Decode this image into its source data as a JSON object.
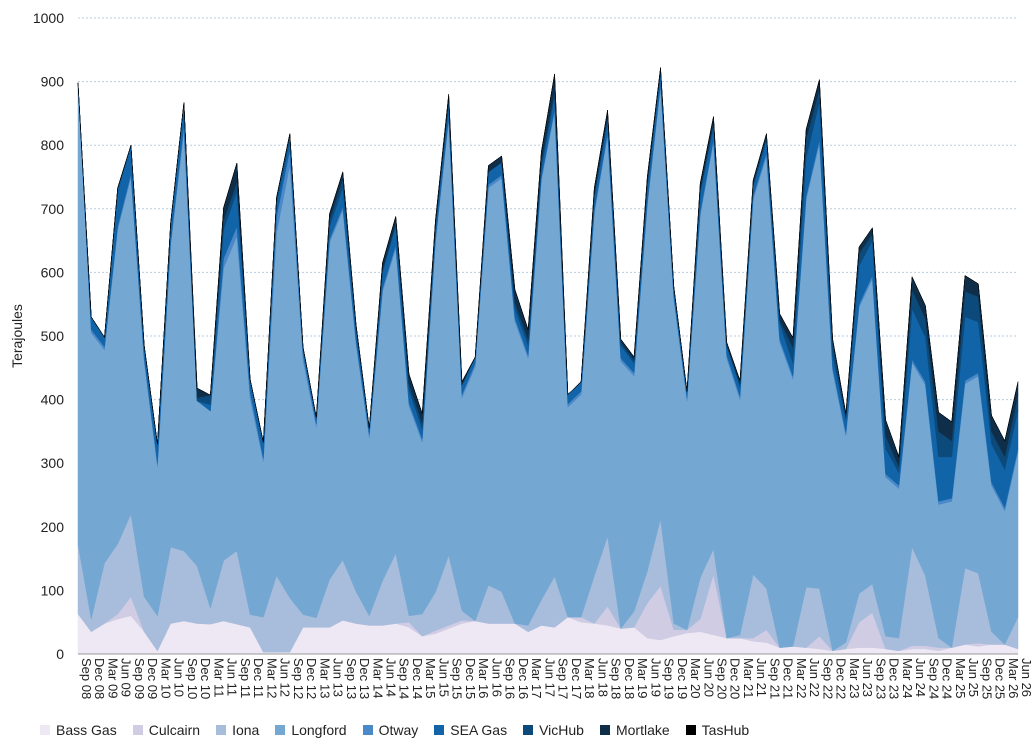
{
  "chart_data": {
    "type": "area",
    "stacked": true,
    "title": "",
    "xlabel": "",
    "ylabel": "Terajoules",
    "ylim": [
      0,
      1000
    ],
    "yticks": [
      0,
      100,
      200,
      300,
      400,
      500,
      600,
      700,
      800,
      900,
      1000
    ],
    "grid": "horizontal dashed",
    "legend_position": "bottom",
    "x_tick_labels": [
      "Sep 08",
      "Dec 08",
      "Mar 09",
      "Jun 09",
      "Sep 09",
      "Dec 09",
      "Mar 10",
      "Jun 10",
      "Sep 10",
      "Dec 10",
      "Mar 11",
      "Jun 11",
      "Sep 11",
      "Dec 11",
      "Mar 12",
      "Jun 12",
      "Sep 12",
      "Dec 12",
      "Mar 13",
      "Jun 13",
      "Sep 13",
      "Dec 13",
      "Mar 14",
      "Jun 14",
      "Sep 14",
      "Dec 14",
      "Mar 15",
      "Jun 15",
      "Sep 15",
      "Dec 15",
      "Mar 16",
      "Jun 16",
      "Sep 16",
      "Dec 16",
      "Mar 17",
      "Jun 17",
      "Sep 17",
      "Dec 17",
      "Mar 18",
      "Jun 18",
      "Sep 18",
      "Dec 18",
      "Mar 19",
      "Jun 19",
      "Sep 19",
      "Dec 19",
      "Mar 20",
      "Jun 20",
      "Sep 20",
      "Dec 20",
      "Mar 21",
      "Jun 21",
      "Sep 21",
      "Dec 21",
      "Mar 22",
      "Jun 22",
      "Sep 22",
      "Dec 22",
      "Mar 23",
      "Jun 23",
      "Sep 23",
      "Dec 23",
      "Mar 24",
      "Jun 24",
      "Sep 24",
      "Dec 24",
      "Mar 25",
      "Jun 25",
      "Sep 25",
      "Dec 25",
      "Mar 26",
      "Jun 26"
    ],
    "series": [
      {
        "name": "Bass Gas",
        "color": "#ede8f4",
        "values": [
          63,
          35,
          48,
          55,
          60,
          35,
          5,
          48,
          52,
          48,
          47,
          52,
          47,
          42,
          3,
          3,
          3,
          42,
          42,
          42,
          53,
          48,
          45,
          45,
          48,
          42,
          28,
          32,
          40,
          48,
          52,
          48,
          48,
          48,
          35,
          45,
          42,
          58,
          50,
          48,
          45,
          40,
          42,
          25,
          22,
          28,
          33,
          35,
          30,
          25,
          25,
          20,
          18,
          10,
          12,
          10,
          8,
          5,
          8,
          10,
          10,
          8,
          5,
          8,
          8,
          5,
          10,
          15,
          12,
          15,
          15,
          8
        ]
      },
      {
        "name": "Culcairn",
        "color": "#cfcce4",
        "values": [
          0,
          0,
          0,
          8,
          30,
          0,
          0,
          0,
          0,
          0,
          0,
          0,
          0,
          0,
          0,
          0,
          0,
          0,
          0,
          0,
          0,
          0,
          0,
          0,
          0,
          8,
          0,
          5,
          5,
          5,
          0,
          0,
          0,
          0,
          0,
          0,
          0,
          0,
          8,
          0,
          30,
          0,
          0,
          55,
          85,
          10,
          5,
          20,
          95,
          0,
          0,
          5,
          20,
          0,
          0,
          0,
          20,
          0,
          0,
          40,
          55,
          0,
          0,
          5,
          5,
          5,
          0,
          0,
          5,
          0,
          0,
          0
        ]
      },
      {
        "name": "Iona",
        "color": "#a8bcdc",
        "values": [
          110,
          20,
          95,
          110,
          130,
          55,
          55,
          120,
          110,
          90,
          25,
          95,
          115,
          20,
          55,
          120,
          85,
          20,
          15,
          75,
          95,
          50,
          15,
          70,
          110,
          10,
          35,
          60,
          110,
          15,
          0,
          60,
          50,
          0,
          10,
          40,
          80,
          0,
          0,
          75,
          110,
          0,
          25,
          50,
          105,
          10,
          0,
          65,
          40,
          0,
          5,
          100,
          65,
          0,
          0,
          95,
          75,
          0,
          10,
          45,
          45,
          20,
          20,
          155,
          110,
          15,
          0,
          120,
          110,
          20,
          0,
          50
        ]
      },
      {
        "name": "Longford",
        "color": "#74a8d2",
        "values": [
          720,
          450,
          335,
          495,
          530,
          370,
          235,
          475,
          660,
          260,
          310,
          460,
          495,
          340,
          245,
          540,
          680,
          400,
          300,
          530,
          550,
          390,
          280,
          455,
          480,
          330,
          270,
          550,
          685,
          335,
          400,
          625,
          650,
          475,
          420,
          660,
          730,
          330,
          350,
          570,
          630,
          420,
          370,
          575,
          680,
          510,
          360,
          570,
          640,
          440,
          370,
          590,
          680,
          480,
          420,
          610,
          700,
          440,
          325,
          450,
          480,
          250,
          235,
          290,
          300,
          210,
          230,
          290,
          310,
          230,
          210,
          260
        ]
      },
      {
        "name": "Otway",
        "color": "#4a88c8",
        "values": [
          5,
          5,
          5,
          5,
          5,
          5,
          5,
          5,
          10,
          0,
          0,
          15,
          15,
          10,
          5,
          25,
          25,
          10,
          5,
          5,
          5,
          5,
          5,
          5,
          5,
          5,
          5,
          5,
          5,
          5,
          5,
          5,
          5,
          5,
          5,
          5,
          5,
          5,
          5,
          5,
          5,
          5,
          5,
          5,
          5,
          5,
          5,
          5,
          5,
          5,
          5,
          5,
          5,
          5,
          5,
          5,
          5,
          5,
          5,
          5,
          5,
          5,
          5,
          5,
          5,
          5,
          5,
          5,
          5,
          5,
          5,
          5
        ]
      },
      {
        "name": "SEA Gas",
        "color": "#1264a8",
        "values": [
          0,
          20,
          15,
          55,
          45,
          20,
          30,
          30,
          35,
          0,
          10,
          45,
          55,
          20,
          25,
          20,
          15,
          10,
          10,
          20,
          30,
          15,
          10,
          25,
          30,
          20,
          15,
          20,
          20,
          15,
          10,
          20,
          20,
          15,
          15,
          15,
          20,
          15,
          15,
          20,
          20,
          20,
          15,
          25,
          20,
          15,
          10,
          30,
          20,
          15,
          15,
          15,
          20,
          25,
          20,
          60,
          60,
          20,
          20,
          60,
          55,
          40,
          20,
          80,
          70,
          70,
          65,
          100,
          80,
          60,
          60,
          60
        ]
      },
      {
        "name": "VicHub",
        "color": "#0b4a7a",
        "values": [
          0,
          0,
          0,
          5,
          0,
          0,
          0,
          0,
          0,
          5,
          15,
          15,
          15,
          0,
          0,
          10,
          10,
          0,
          0,
          10,
          15,
          10,
          0,
          5,
          5,
          10,
          10,
          0,
          5,
          0,
          0,
          0,
          0,
          10,
          10,
          10,
          10,
          0,
          0,
          5,
          5,
          5,
          5,
          5,
          0,
          0,
          0,
          5,
          5,
          0,
          5,
          5,
          5,
          5,
          25,
          30,
          20,
          20,
          5,
          20,
          10,
          20,
          10,
          30,
          30,
          40,
          25,
          40,
          40,
          20,
          20,
          25
        ]
      },
      {
        "name": "Mortlake",
        "color": "#0e2e4a",
        "values": [
          0,
          0,
          0,
          0,
          0,
          0,
          0,
          0,
          0,
          15,
          0,
          20,
          30,
          0,
          0,
          0,
          0,
          0,
          0,
          10,
          10,
          0,
          0,
          10,
          10,
          15,
          15,
          10,
          10,
          5,
          0,
          10,
          10,
          20,
          15,
          15,
          25,
          0,
          0,
          10,
          10,
          5,
          5,
          10,
          5,
          0,
          0,
          10,
          10,
          5,
          5,
          5,
          5,
          10,
          15,
          15,
          15,
          5,
          5,
          10,
          10,
          25,
          15,
          20,
          20,
          30,
          30,
          25,
          20,
          25,
          25,
          20
        ]
      },
      {
        "name": "TasHub",
        "color": "#000000",
        "values": [
          0,
          0,
          0,
          0,
          0,
          0,
          0,
          0,
          0,
          0,
          0,
          0,
          0,
          0,
          0,
          0,
          0,
          0,
          0,
          0,
          0,
          0,
          0,
          0,
          0,
          0,
          0,
          0,
          0,
          0,
          0,
          0,
          0,
          0,
          0,
          0,
          0,
          0,
          0,
          0,
          0,
          0,
          0,
          0,
          0,
          0,
          0,
          0,
          0,
          0,
          0,
          0,
          0,
          0,
          0,
          0,
          0,
          0,
          0,
          0,
          0,
          0,
          0,
          0,
          0,
          0,
          0,
          0,
          0,
          0,
          0,
          0
        ]
      }
    ]
  }
}
